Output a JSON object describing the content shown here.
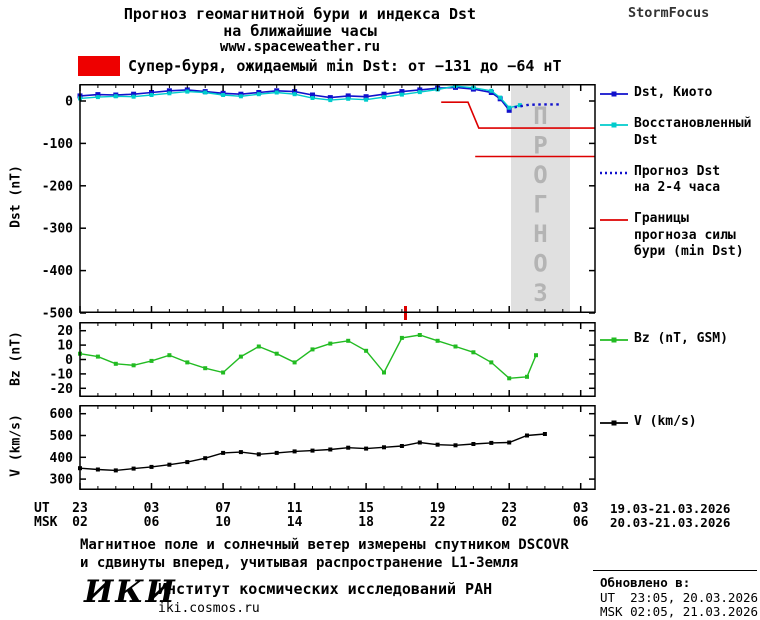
{
  "header": {
    "title_line1": "Прогноз геомагнитной бури и индекса Dst",
    "title_line2": "на ближайшие часы",
    "site_url": "www.spaceweather.ru",
    "brand": "StormFocus"
  },
  "alert": {
    "text": "Супер-буря, ожидаемый min Dst: от −131 до −64 нТ",
    "box_color": "#ee0000"
  },
  "colors": {
    "dst_kyoto": "#1111cc",
    "dst_restored": "#00cccc",
    "dst_forecast": "#1111cc",
    "storm_bounds": "#dd0000",
    "bz": "#22bb22",
    "v": "#000000",
    "forecast_band": "#e0e0e0",
    "watermark": "#b4b4b4",
    "event_marker": "#dd0000"
  },
  "axes": {
    "dst_ylabel": "Dst (nT)",
    "bz_ylabel": "Bz (nT)",
    "v_ylabel": "V (km/s)"
  },
  "xaxis": {
    "ut_label": "UT",
    "msk_label": "MSK",
    "tick_hours": [
      0,
      4,
      8,
      12,
      16,
      20,
      24,
      28
    ],
    "ut_ticks": [
      "23",
      "03",
      "07",
      "11",
      "15",
      "19",
      "23",
      "03"
    ],
    "msk_ticks": [
      "02",
      "06",
      "10",
      "14",
      "18",
      "22",
      "02",
      "06"
    ],
    "ut_date_range": "19.03-21.03.2026",
    "msk_date_range": "20.03-21.03.2026"
  },
  "legends": {
    "dst": [
      {
        "label": "Dst, Киото",
        "color": "#1111cc",
        "style": "solid",
        "marker": true
      },
      {
        "label": "Восстановленный\nDst",
        "color": "#00cccc",
        "style": "solid",
        "marker": true
      },
      {
        "label": "Прогноз Dst\nна 2-4 часа",
        "color": "#1111cc",
        "style": "dotted",
        "marker": false
      },
      {
        "label": "Границы\nпрогноза силы\nбури (min Dst)",
        "color": "#dd0000",
        "style": "solid",
        "marker": false
      }
    ],
    "bz": [
      {
        "label": "Bz (nT, GSM)",
        "color": "#22bb22",
        "style": "solid",
        "marker": true
      }
    ],
    "v": [
      {
        "label": "V (km/s)",
        "color": "#000000",
        "style": "solid",
        "marker": true
      }
    ]
  },
  "chart_data": [
    {
      "type": "line",
      "name": "dst-panel",
      "ylabel": "Dst (nT)",
      "xlabel": "UT hours, 23:00 19.03 — 03:00 21.03",
      "xlim": [
        0,
        28.8
      ],
      "ylim": [
        -500,
        40
      ],
      "yticks": [
        0,
        -100,
        -200,
        -300,
        -400,
        -500
      ],
      "grid": false,
      "legend_position": "right",
      "forecast_band": {
        "x0": 24.1,
        "x1": 27.4,
        "watermark": "ПРОГНОЗ"
      },
      "event_marker_x": 18.2,
      "series": [
        {
          "name": "Dst, Киото",
          "color": "#1111cc",
          "marker": true,
          "msize": 5,
          "width": 1.6,
          "x": [
            0,
            1,
            2,
            3,
            4,
            5,
            6,
            7,
            8,
            9,
            10,
            11,
            12,
            13,
            14,
            15,
            16,
            17,
            18,
            19,
            20,
            21,
            22,
            23,
            23.5,
            24
          ],
          "values": [
            12,
            15,
            14,
            16,
            20,
            24,
            26,
            22,
            18,
            16,
            20,
            24,
            22,
            14,
            8,
            12,
            10,
            16,
            22,
            26,
            30,
            32,
            28,
            20,
            5,
            -22
          ]
        },
        {
          "name": "Восстановленный Dst",
          "color": "#00cccc",
          "marker": true,
          "msize": 4,
          "width": 1.4,
          "x": [
            0,
            1,
            2,
            3,
            4,
            5,
            6,
            7,
            8,
            9,
            10,
            11,
            12,
            13,
            14,
            15,
            16,
            17,
            18,
            19,
            20,
            21,
            22,
            23,
            23.5,
            24,
            24.6
          ],
          "values": [
            6,
            9,
            11,
            10,
            14,
            18,
            22,
            20,
            14,
            11,
            16,
            20,
            16,
            7,
            2,
            5,
            3,
            9,
            15,
            21,
            27,
            35,
            31,
            24,
            8,
            -16,
            -10
          ]
        },
        {
          "name": "Прогноз Dst на 2-4 часа",
          "color": "#1111cc",
          "dash": "2.5 3.5",
          "width": 2.4,
          "x": [
            24.3,
            25.1,
            25.9,
            26.8
          ],
          "values": [
            -15,
            -9,
            -8,
            -8
          ]
        },
        {
          "name": "Граница прогноза min Dst −64",
          "color": "#dd0000",
          "width": 1.6,
          "x": [
            20.2,
            21.7,
            22.3,
            28.8
          ],
          "values": [
            -3,
            -3,
            -64,
            -64
          ]
        },
        {
          "name": "Граница прогноза min Dst −131",
          "color": "#dd0000",
          "width": 1.6,
          "x": [
            22.1,
            28.8
          ],
          "values": [
            -131,
            -131
          ]
        }
      ]
    },
    {
      "type": "line",
      "name": "bz-panel",
      "ylabel": "Bz (nT)",
      "xlim": [
        0,
        28.8
      ],
      "ylim": [
        -26,
        26
      ],
      "yticks": [
        20,
        10,
        0,
        -10,
        -20
      ],
      "grid": false,
      "series": [
        {
          "name": "Bz (nT, GSM)",
          "color": "#22bb22",
          "marker": true,
          "msize": 4,
          "width": 1.4,
          "x": [
            0,
            1,
            2,
            3,
            4,
            5,
            6,
            7,
            8,
            9,
            10,
            11,
            12,
            13,
            14,
            15,
            16,
            17,
            18,
            19,
            20,
            21,
            22,
            23,
            24,
            25,
            25.5
          ],
          "values": [
            4,
            2,
            -3,
            -4,
            -1,
            3,
            -2,
            -6,
            -9,
            2,
            9,
            4,
            -2,
            7,
            11,
            13,
            6,
            -9,
            15,
            17,
            13,
            9,
            5,
            -2,
            -13,
            -12,
            3
          ]
        }
      ]
    },
    {
      "type": "line",
      "name": "v-panel",
      "ylabel": "V (km/s)",
      "xlim": [
        0,
        28.8
      ],
      "ylim": [
        250,
        640
      ],
      "yticks": [
        600,
        500,
        400,
        300
      ],
      "grid": false,
      "series": [
        {
          "name": "V (km/s)",
          "color": "#000000",
          "marker": true,
          "msize": 4,
          "width": 1.4,
          "x": [
            0,
            1,
            2,
            3,
            4,
            5,
            6,
            7,
            8,
            9,
            10,
            11,
            12,
            13,
            14,
            15,
            16,
            17,
            18,
            19,
            20,
            21,
            22,
            23,
            24,
            25,
            26
          ],
          "values": [
            350,
            344,
            340,
            348,
            356,
            366,
            378,
            396,
            420,
            424,
            414,
            420,
            427,
            431,
            436,
            444,
            440,
            446,
            452,
            468,
            458,
            455,
            461,
            466,
            468,
            500,
            507
          ]
        }
      ]
    }
  ],
  "note": {
    "line1": "Магнитное поле и солнечный ветер измерены спутником DSCOVR",
    "line2": "и сдвинуты вперед, учитывая распространение L1-Земля"
  },
  "footer": {
    "logo": "ИКИ",
    "institute": "Институт космических исследований РАН",
    "site": "iki.cosmos.ru",
    "updated_label": "Обновлено в:",
    "updated_ut": "UT  23:05, 20.03.2026",
    "updated_msk": "MSK 02:05, 21.03.2026"
  }
}
